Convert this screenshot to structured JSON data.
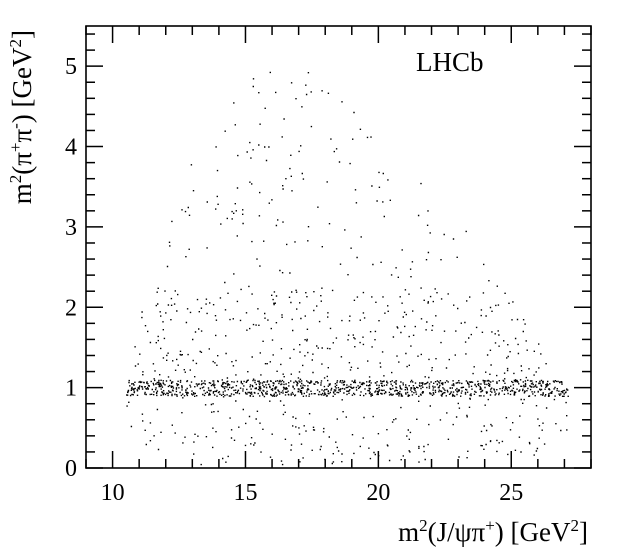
{
  "chart_data": {
    "type": "scatter",
    "title": "",
    "annotation": "LHCb",
    "xlabel": {
      "prefix": "m",
      "prefix_sup": "2",
      "body": "(J/ψπ",
      "body_sup": "+",
      "suffix": ") [GeV",
      "suffix_sup": "2",
      "end": "]"
    },
    "ylabel": {
      "prefix": "m",
      "prefix_sup": "2",
      "body": "(π",
      "body_sup": "+",
      "mid": "π",
      "mid_sup": "-",
      "suffix": ") [GeV",
      "suffix_sup": "2",
      "end": "]"
    },
    "xlim": [
      9,
      28
    ],
    "ylim": [
      0,
      5.5
    ],
    "xticks": [
      10,
      15,
      20,
      25
    ],
    "yticks": [
      0,
      1,
      2,
      3,
      4,
      5
    ],
    "grid": false,
    "boundary": [
      [
        10.5,
        0.75
      ],
      [
        10.6,
        0.45
      ],
      [
        10.9,
        0.18
      ],
      [
        11.5,
        0.06
      ],
      [
        13,
        0.03
      ],
      [
        16,
        0.03
      ],
      [
        20,
        0.03
      ],
      [
        24,
        0.05
      ],
      [
        26.5,
        0.15
      ],
      [
        27.3,
        0.5
      ],
      [
        27.1,
        1.0
      ],
      [
        26.5,
        1.3
      ],
      [
        25.5,
        1.9
      ],
      [
        24.5,
        2.4
      ],
      [
        23,
        3.1
      ],
      [
        21,
        3.9
      ],
      [
        19.5,
        4.45
      ],
      [
        18,
        4.9
      ],
      [
        17.2,
        5.05
      ],
      [
        16.7,
        5.12
      ],
      [
        16,
        5.05
      ],
      [
        15,
        4.8
      ],
      [
        14,
        4.45
      ],
      [
        13,
        3.85
      ],
      [
        12.3,
        3.3
      ],
      [
        11.5,
        2.55
      ],
      [
        11,
        1.9
      ],
      [
        10.7,
        1.3
      ],
      [
        10.5,
        0.9
      ]
    ],
    "density_bands": [
      {
        "y_min": 0.05,
        "y_max": 0.9,
        "relative_density": 0.6
      },
      {
        "y_min": 0.9,
        "y_max": 1.1,
        "relative_density": 4.0
      },
      {
        "y_min": 1.1,
        "y_max": 2.25,
        "relative_density": 0.65
      },
      {
        "y_min": 2.25,
        "y_max": 5.15,
        "relative_density": 0.2
      }
    ]
  }
}
